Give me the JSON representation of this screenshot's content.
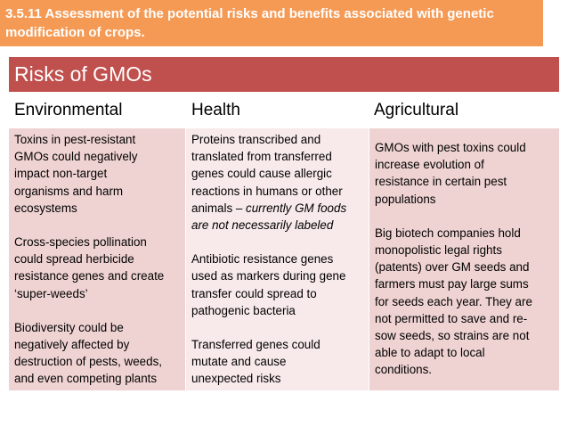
{
  "banner": {
    "text": "3.5.11 Assessment of the potential risks and benefits associated with genetic\nmodification of crops."
  },
  "table": {
    "title": "Risks of GMOs",
    "headers": [
      "Environmental",
      "Health",
      "Agricultural"
    ],
    "environmental": [
      "Toxins in pest-resistant\nGMOs could negatively\nimpact non-target\norganisms and harm\necosystems",
      "Cross-species pollination\ncould spread herbicide\nresistance genes and create\n‘super-weeds’",
      "Biodiversity could be\nnegatively affected by\ndestruction of pests, weeds,\nand even competing plants"
    ],
    "health": {
      "p1_plain": "Proteins transcribed and\ntranslated from transferred\ngenes could cause allergic\nreactions in humans or other\nanimals – ",
      "p1_italic": "currently GM foods\nare not necessarily labeled",
      "p2": "Antibiotic resistance genes\nused as markers during gene\ntransfer could spread to\npathogenic bacteria",
      "p3": "Transferred genes could\nmutate and cause\nunexpected risks"
    },
    "agricultural": [
      "GMOs with pest toxins could\nincrease evolution of\nresistance in certain pest\npopulations",
      "Big biotech companies hold\nmonopolistic legal rights\n(patents) over GM seeds and\nfarmers must pay large sums\nfor seeds each year. They are\nnot permitted to save and re-\nsow seeds, so strains are not\nable to adapt to local\nconditions."
    ]
  }
}
